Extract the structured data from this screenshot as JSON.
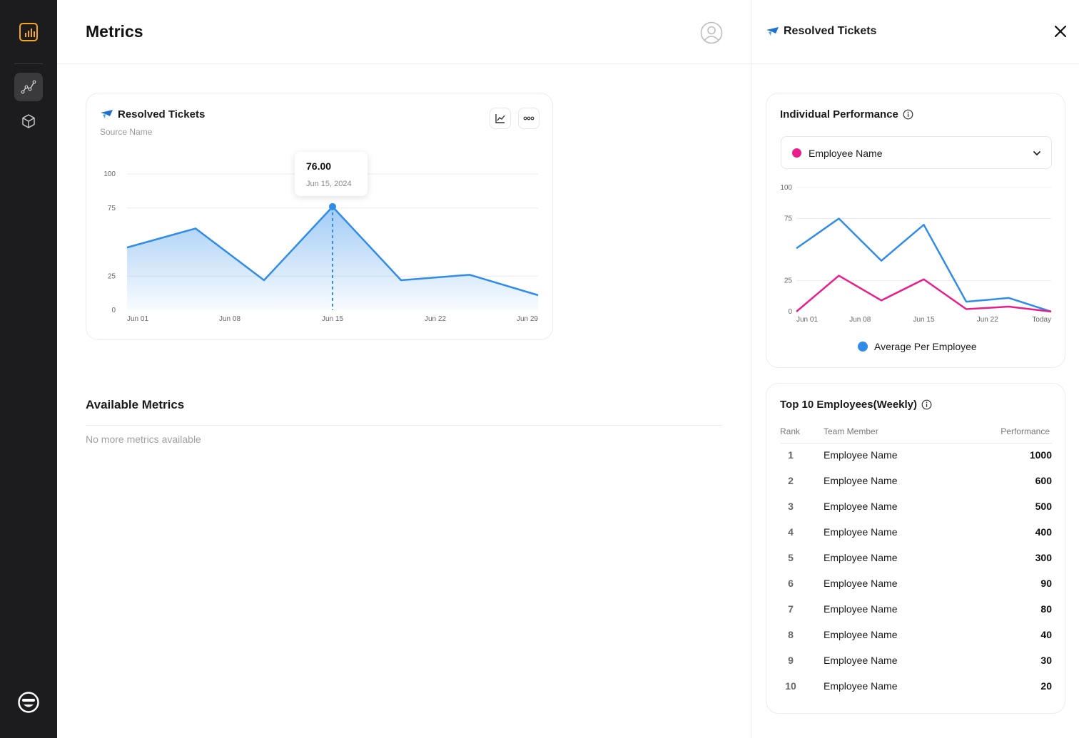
{
  "page": {
    "title": "Metrics"
  },
  "sidebar": {
    "items": [
      {
        "name": "analytics-nav",
        "icon": "line-chart-icon",
        "active": true
      },
      {
        "name": "box-nav",
        "icon": "cube-icon",
        "active": false
      }
    ]
  },
  "metric_card": {
    "title": "Resolved Tickets",
    "subtitle": "Source Name",
    "tooltip": {
      "value": "76.00",
      "date": "Jun 15, 2024"
    },
    "chart_data": {
      "type": "area",
      "x": [
        "Jun 01",
        "Jun 05",
        "Jun 10",
        "Jun 15",
        "Jun 19",
        "Jun 24",
        "Jun 29"
      ],
      "values": [
        46,
        60,
        22,
        76,
        22,
        26,
        11
      ],
      "x_tick_labels": [
        "Jun 01",
        "Jun 08",
        "Jun 15",
        "Jun 22",
        "Jun 29"
      ],
      "y_tick_labels": [
        "0",
        "25",
        "75",
        "100"
      ],
      "ylim": [
        0,
        100
      ],
      "highlight_index": 3,
      "color": "#2f8ce8"
    }
  },
  "available_metrics": {
    "title": "Available Metrics",
    "empty_text": "No more metrics available"
  },
  "panel": {
    "title": "Resolved Tickets",
    "individual": {
      "title": "Individual Performance",
      "select_value": "Employee Name",
      "legend": "Average Per Employee",
      "chart_data": {
        "type": "line",
        "x_tick_labels": [
          "Jun 01",
          "Jun 08",
          "Jun 15",
          "Jun 22",
          "Today"
        ],
        "y_tick_labels": [
          "0",
          "25",
          "75",
          "100"
        ],
        "ylim": [
          0,
          100
        ],
        "series": [
          {
            "name": "Average Per Employee",
            "color": "#2f8ce8",
            "values": [
              51,
              75,
              41,
              70,
              8,
              11,
              0
            ]
          },
          {
            "color": "#e91e8c",
            "values": [
              0,
              29,
              9,
              26,
              2,
              4,
              0
            ]
          }
        ]
      }
    },
    "top10": {
      "title": "Top 10 Employees(Weekly)",
      "headers": {
        "rank": "Rank",
        "member": "Team Member",
        "performance": "Performance"
      },
      "rows": [
        {
          "rank": "1",
          "name": "Employee Name",
          "perf": "1000"
        },
        {
          "rank": "2",
          "name": "Employee Name",
          "perf": "600"
        },
        {
          "rank": "3",
          "name": "Employee Name",
          "perf": "500"
        },
        {
          "rank": "4",
          "name": "Employee Name",
          "perf": "400"
        },
        {
          "rank": "5",
          "name": "Employee Name",
          "perf": "300"
        },
        {
          "rank": "6",
          "name": "Employee Name",
          "perf": "90"
        },
        {
          "rank": "7",
          "name": "Employee Name",
          "perf": "80"
        },
        {
          "rank": "8",
          "name": "Employee Name",
          "perf": "40"
        },
        {
          "rank": "9",
          "name": "Employee Name",
          "perf": "30"
        },
        {
          "rank": "10",
          "name": "Employee Name",
          "perf": "20"
        }
      ]
    }
  }
}
